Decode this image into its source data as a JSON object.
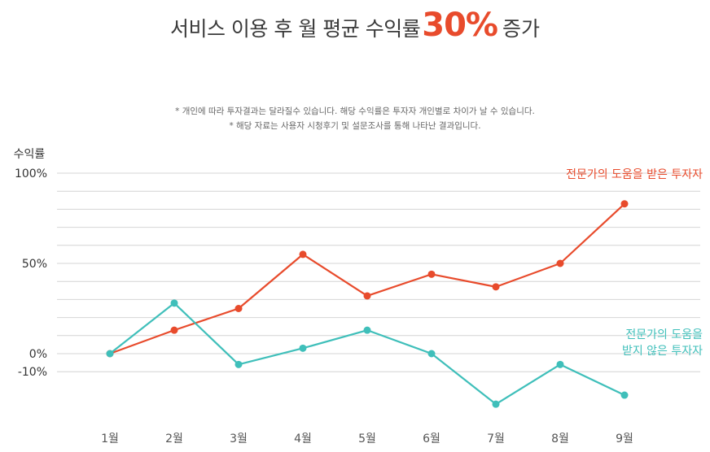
{
  "title": {
    "prefix": "서비스 이용 후 월 평균 수익률",
    "highlight": "30%",
    "suffix": "증가"
  },
  "notes": [
    "* 개인에 따라 투자결과는 달라질수 있습니다. 해당 수익률은 투자자 개인별로 차이가 날 수 있습니다.",
    "* 해당 자료는 사용자 시청후기 및 설문조사를 통해 나타난 결과입니다."
  ],
  "colors": {
    "expert": "#e84b2c",
    "non_expert": "#3fbfba",
    "grid": "#d4d4d4",
    "highlight": "#e84b2c"
  },
  "chart_data": {
    "type": "line",
    "ylabel": "수익률",
    "categories": [
      "1월",
      "2월",
      "3월",
      "4월",
      "5월",
      "6월",
      "7월",
      "8월",
      "9월"
    ],
    "y_ticks": [
      {
        "value": 100,
        "label": "100%"
      },
      {
        "value": 50,
        "label": "50%"
      },
      {
        "value": 0,
        "label": "0%"
      },
      {
        "value": -10,
        "label": "-10%"
      }
    ],
    "ylim": [
      -20,
      100
    ],
    "grid": true,
    "series": [
      {
        "name": "전문가의 도움을 받은 투자자",
        "label_lines": [
          "전문가의 도움을 받은 투자자"
        ],
        "color": "#e84b2c",
        "values": [
          0,
          13,
          25,
          55,
          32,
          44,
          37,
          50,
          83
        ]
      },
      {
        "name": "전문가의 도움을 받지 않은 투자자",
        "label_lines": [
          "전문가의 도움을",
          "받지 않은 투자자"
        ],
        "color": "#3fbfba",
        "values": [
          0,
          28,
          -6,
          3,
          13,
          0,
          -28,
          -6,
          -23
        ]
      }
    ]
  }
}
